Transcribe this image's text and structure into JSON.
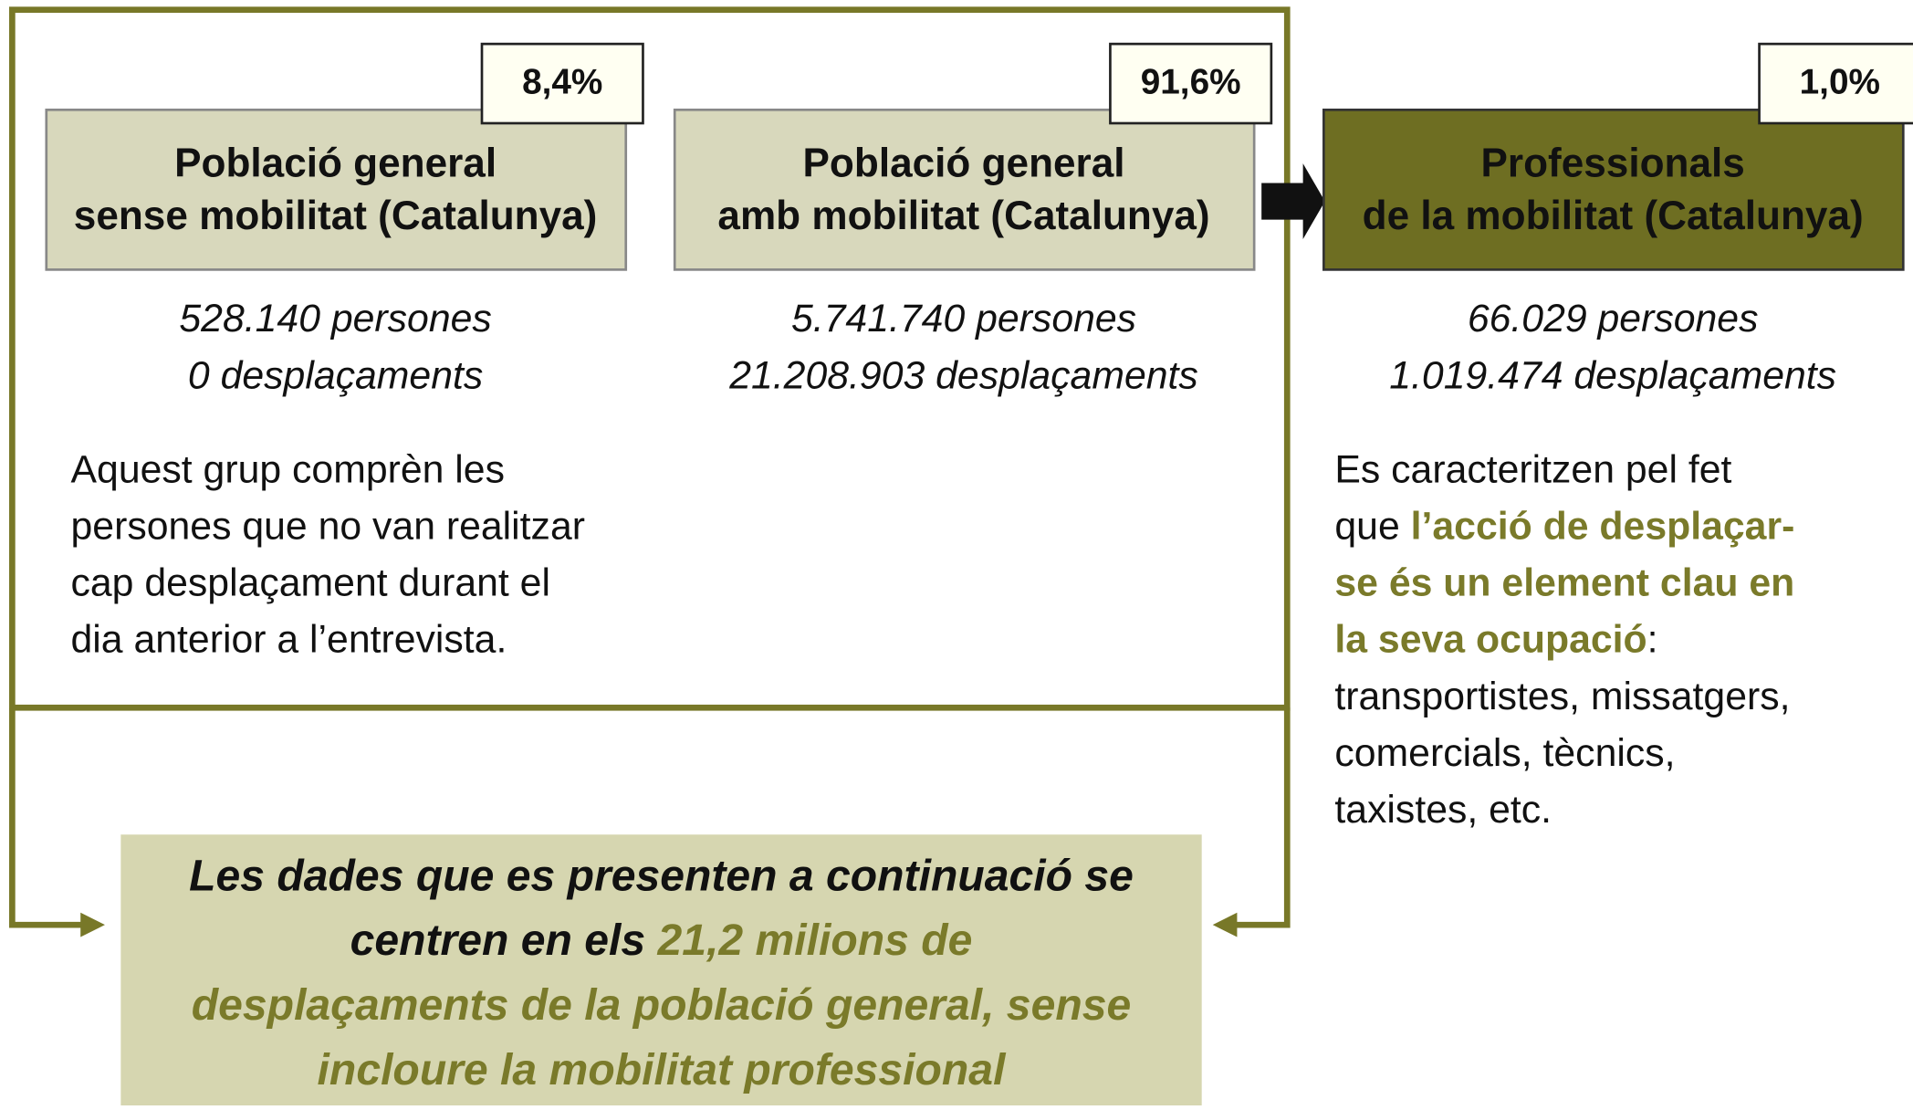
{
  "groups": [
    {
      "percent": "8,4%",
      "title": [
        "Població general",
        "sense mobilitat (Catalunya)"
      ],
      "stats": [
        "528.140 persones",
        "0 desplaçaments"
      ],
      "description": [
        [
          {
            "text": "Aquest grup comprèn les"
          }
        ],
        [
          {
            "text": "persones que no van realitzar"
          }
        ],
        [
          {
            "text": "cap desplaçament durant el"
          }
        ],
        [
          {
            "text": "dia anterior a l’entrevista."
          }
        ]
      ]
    },
    {
      "percent": "91,6%",
      "title": [
        "Població general",
        "amb mobilitat (Catalunya)"
      ],
      "stats": [
        "5.741.740 persones",
        "21.208.903 desplaçaments"
      ],
      "description": []
    },
    {
      "percent": "1,0%",
      "title": [
        "Professionals",
        "de la mobilitat (Catalunya)"
      ],
      "stats": [
        "66.029 persones",
        "1.019.474 desplaçaments"
      ],
      "description": [
        [
          {
            "text": "Es caracteritzen pel fet"
          }
        ],
        [
          {
            "text": "que "
          },
          {
            "text": "l’acció de desplaçar-",
            "highlight": true
          }
        ],
        [
          {
            "text": "se és un element clau en",
            "highlight": true
          }
        ],
        [
          {
            "text": "la seva ocupació",
            "highlight": true
          },
          {
            "text": ":"
          }
        ],
        [
          {
            "text": "transportistes, missatgers,"
          }
        ],
        [
          {
            "text": "comercials, tècnics,"
          }
        ],
        [
          {
            "text": "taxistes, etc."
          }
        ]
      ]
    }
  ],
  "conclusion": [
    [
      {
        "text": "Les dades que es presenten a continuació se"
      }
    ],
    [
      {
        "text": "centren en els "
      },
      {
        "text": "21,2 milions de",
        "highlight": true
      }
    ],
    [
      {
        "text": "desplaçaments de la població general, sense",
        "highlight": true
      }
    ],
    [
      {
        "text": "incloure la mobilitat professional",
        "highlight": true
      }
    ]
  ]
}
